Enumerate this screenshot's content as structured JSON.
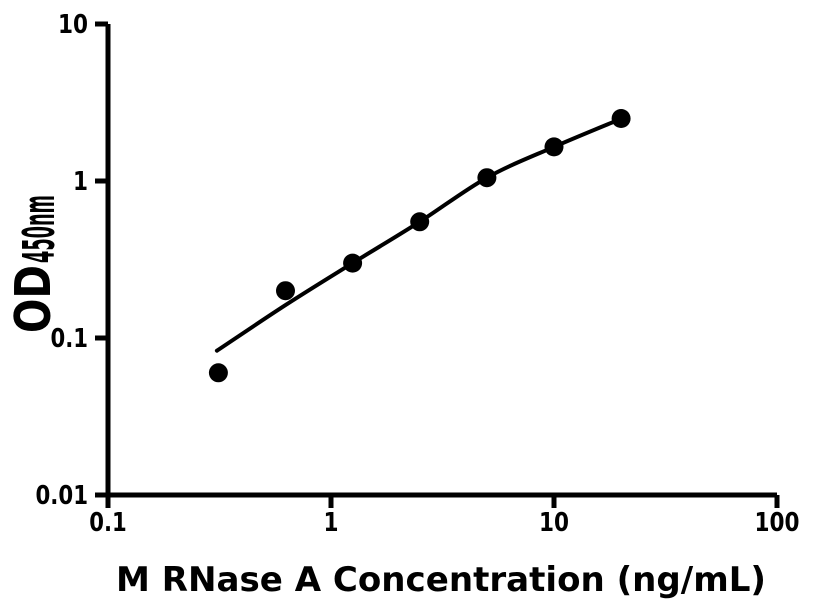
{
  "figure": {
    "background": "#ffffff"
  },
  "chart_data": {
    "type": "scatter",
    "description": "ELISA standard curve: scatter points with fitted curve on log-log axes",
    "title": "",
    "xlabel": "M RNase A Concentration (ng/mL)",
    "ylabel_main": "OD",
    "ylabel_sub": "450nm",
    "x_scale": "log",
    "y_scale": "log",
    "xlim": [
      0.1,
      100
    ],
    "ylim": [
      0.01,
      10
    ],
    "x_ticks": [
      {
        "value": 0.1,
        "label": "0.1"
      },
      {
        "value": 1,
        "label": "1"
      },
      {
        "value": 10,
        "label": "10"
      },
      {
        "value": 100,
        "label": "100"
      }
    ],
    "y_ticks": [
      {
        "value": 0.01,
        "label": "0.01"
      },
      {
        "value": 0.1,
        "label": "0.1"
      },
      {
        "value": 1,
        "label": "1"
      },
      {
        "value": 10,
        "label": "10"
      }
    ],
    "grid": false,
    "legend": false,
    "colors": {
      "marker": "#000000",
      "line": "#000000",
      "axis": "#000000",
      "background": "#ffffff"
    },
    "points": [
      {
        "x": 0.3125,
        "y": 0.06
      },
      {
        "x": 0.625,
        "y": 0.2
      },
      {
        "x": 1.25,
        "y": 0.3
      },
      {
        "x": 2.5,
        "y": 0.55
      },
      {
        "x": 5,
        "y": 1.05
      },
      {
        "x": 10,
        "y": 1.65
      },
      {
        "x": 20,
        "y": 2.5
      }
    ],
    "fit_curve_points": [
      {
        "x": 0.308,
        "y": 0.083
      },
      {
        "x": 0.625,
        "y": 0.162
      },
      {
        "x": 1.25,
        "y": 0.3
      },
      {
        "x": 2.5,
        "y": 0.55
      },
      {
        "x": 5,
        "y": 1.05
      },
      {
        "x": 10,
        "y": 1.65
      },
      {
        "x": 20,
        "y": 2.49
      }
    ]
  }
}
